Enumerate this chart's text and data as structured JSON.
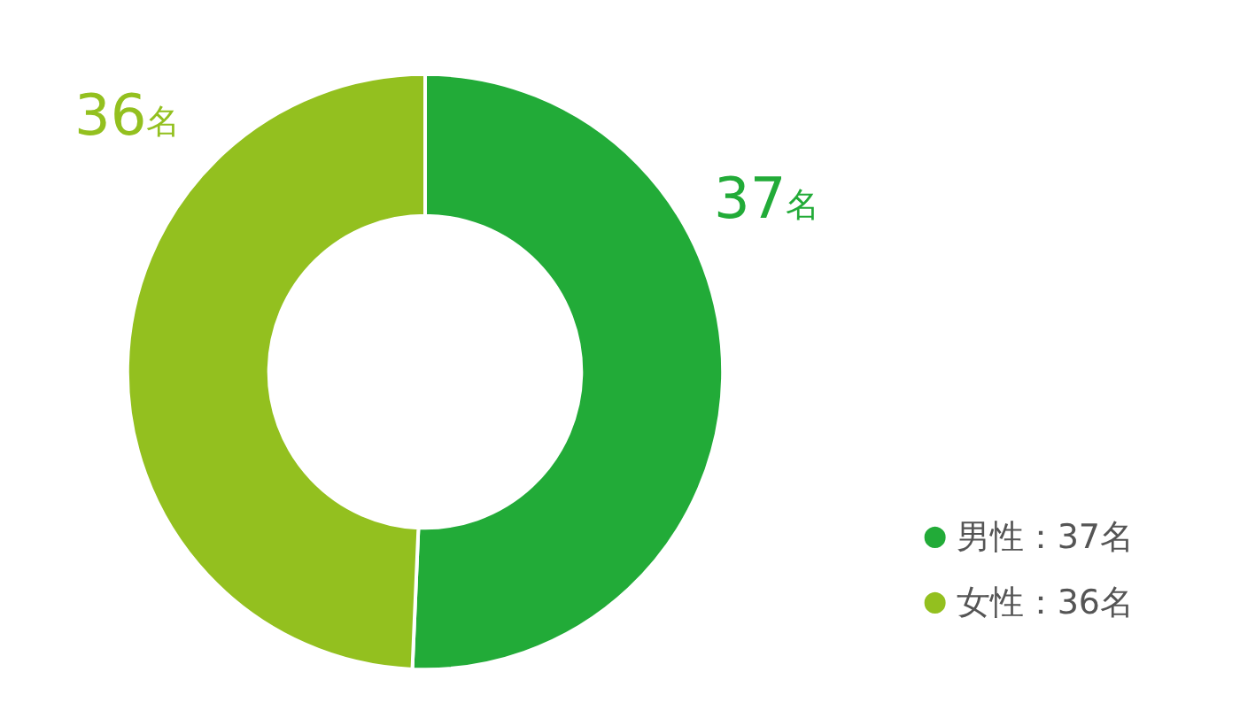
{
  "chart_data": {
    "type": "donut",
    "categories": [
      "男性：37名",
      "女性：36名"
    ],
    "values": [
      37,
      36
    ],
    "colors": [
      "#22ab38",
      "#93c01f"
    ],
    "value_labels": [
      "37名",
      "36名"
    ],
    "legend": "bottom right"
  }
}
